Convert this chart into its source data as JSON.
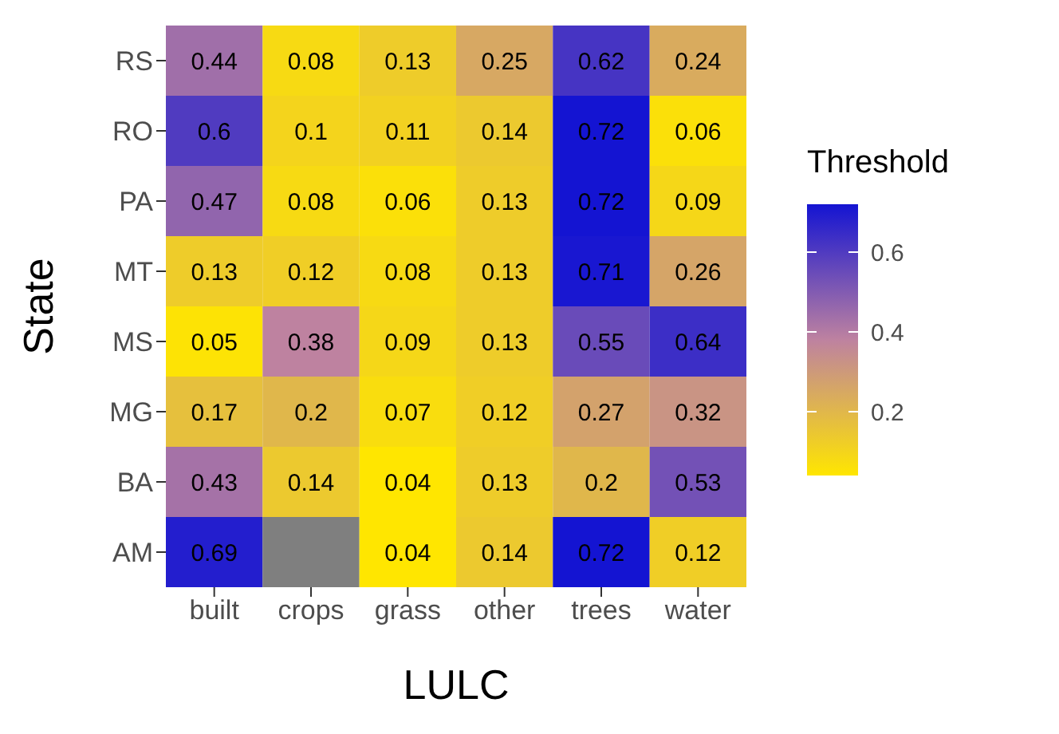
{
  "chart_data": {
    "type": "heatmap",
    "xlabel": "LULC",
    "ylabel": "State",
    "clabel": "Threshold",
    "categories": [
      "built",
      "crops",
      "grass",
      "other",
      "trees",
      "water"
    ],
    "y_categories": [
      "RS",
      "RO",
      "PA",
      "MT",
      "MS",
      "MG",
      "BA",
      "AM"
    ],
    "cells": [
      [
        0.44,
        0.08,
        0.13,
        0.25,
        0.62,
        0.24
      ],
      [
        0.6,
        0.1,
        0.11,
        0.14,
        0.72,
        0.06
      ],
      [
        0.47,
        0.08,
        0.06,
        0.13,
        0.72,
        0.09
      ],
      [
        0.13,
        0.12,
        0.08,
        0.13,
        0.71,
        0.26
      ],
      [
        0.05,
        0.38,
        0.09,
        0.13,
        0.55,
        0.64
      ],
      [
        0.17,
        0.2,
        0.07,
        0.12,
        0.27,
        0.32
      ],
      [
        0.43,
        0.14,
        0.04,
        0.13,
        0.2,
        0.53
      ],
      [
        0.69,
        null,
        0.04,
        0.14,
        0.72,
        0.12
      ]
    ],
    "clim": [
      0.04,
      0.72
    ],
    "cticks": [
      0.2,
      0.4,
      0.6
    ],
    "data_labels": true
  }
}
